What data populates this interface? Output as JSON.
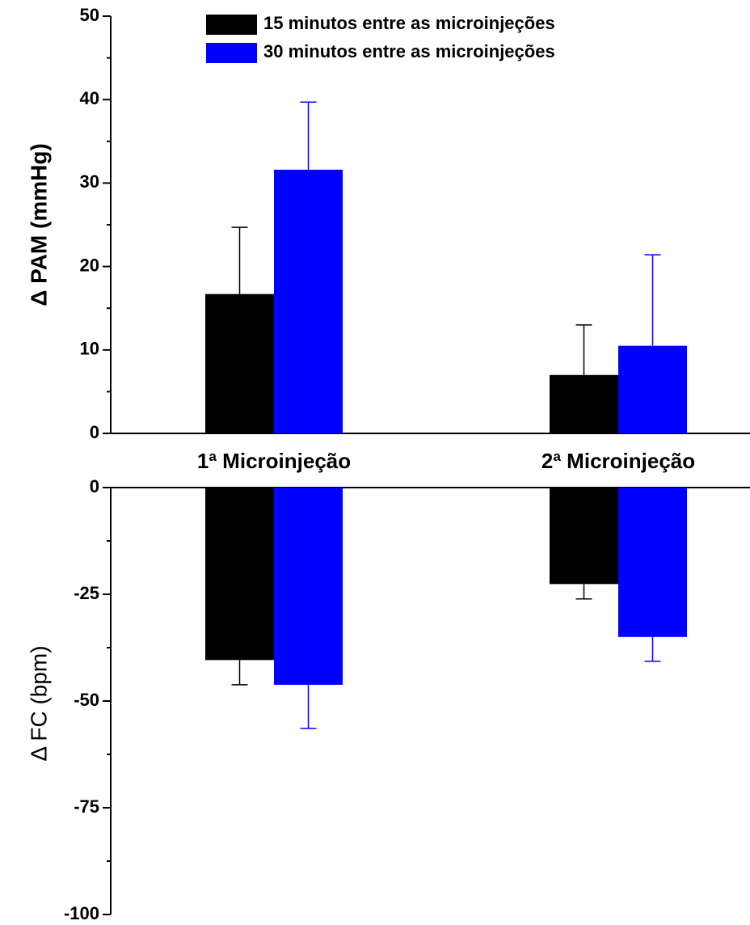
{
  "chart_data": [
    {
      "type": "bar",
      "ylabel": "Δ PAM (mmHg)",
      "categories": [
        "1ª Microinjeção",
        "2ª Microinjeção"
      ],
      "ylim": [
        0,
        50
      ],
      "yticks": [
        0,
        10,
        20,
        30,
        40,
        50
      ],
      "legend": "top",
      "series": [
        {
          "name": "15 minutos entre as microinjeções",
          "color": "#000000",
          "values": [
            16.7,
            7.0
          ],
          "errors": [
            8.0,
            6.0
          ]
        },
        {
          "name": "30 minutos entre as microinjeções",
          "color": "#0000ff",
          "values": [
            31.6,
            10.5
          ],
          "errors": [
            8.1,
            10.9
          ]
        }
      ]
    },
    {
      "type": "bar",
      "ylabel": "Δ FC (bpm)",
      "ylim": [
        -100,
        0
      ],
      "yticks": [
        -100,
        -75,
        -50,
        -25,
        0
      ],
      "series": [
        {
          "color": "#000000",
          "values": [
            -40.4,
            -22.6
          ],
          "errors": [
            5.8,
            3.5
          ]
        },
        {
          "color": "#0000ff",
          "values": [
            -46.2,
            -35.0
          ],
          "errors": [
            10.2,
            5.7
          ]
        }
      ]
    }
  ]
}
